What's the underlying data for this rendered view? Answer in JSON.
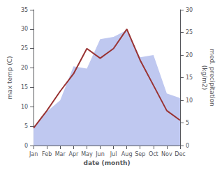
{
  "chart_data": {
    "type": "line",
    "xlabel": "date (month)",
    "ylabel": "max temp (C)",
    "y2label": "med. precipitation\n(kg/m2)",
    "categories": [
      "Jan",
      "Feb",
      "Mar",
      "Apr",
      "May",
      "Jun",
      "Jul",
      "Aug",
      "Sep",
      "Oct",
      "Nov",
      "Dec"
    ],
    "series": [
      {
        "type": "area",
        "axis": "y2",
        "color": "#bfc8f0",
        "values": [
          4.0,
          7.5,
          10.0,
          17.5,
          17.0,
          23.5,
          24.0,
          25.5,
          19.5,
          20.0,
          11.5,
          10.5
        ]
      },
      {
        "type": "line",
        "color": "#993333",
        "values": [
          4.5,
          9.0,
          14.0,
          18.5,
          25.0,
          22.5,
          25.0,
          30.0,
          22.0,
          15.5,
          9.0,
          6.5
        ]
      }
    ],
    "ylim": [
      0,
      35
    ],
    "yticks": [
      0,
      5,
      10,
      15,
      20,
      25,
      30,
      35
    ],
    "y2lim": [
      0,
      30
    ],
    "y2ticks": [
      0,
      5,
      10,
      15,
      20,
      25,
      30
    ],
    "grid": false
  }
}
